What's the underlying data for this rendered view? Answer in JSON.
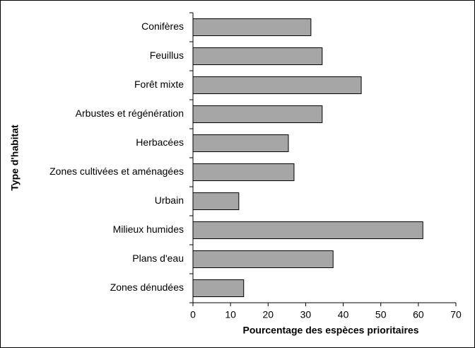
{
  "chart_data": {
    "type": "barh",
    "xlabel": "Pourcentage des espèces prioritaires",
    "ylabel": "Type d'habitat",
    "categories": [
      "Conifères",
      "Feuillus",
      "Forêt mixte",
      "Arbustes et régénération",
      "Herbacées",
      "Zones cultivées et aménagées",
      "Urbain",
      "Milieux humides",
      "Plans d'eau",
      "Zones dénudées"
    ],
    "values": [
      31.4,
      34.4,
      44.8,
      34.4,
      25.4,
      26.9,
      12.2,
      61.2,
      37.3,
      13.5
    ],
    "color": "#a6a6a6",
    "xlim": [
      0,
      70
    ],
    "xticks": [
      0,
      10,
      20,
      30,
      40,
      50,
      60,
      70
    ],
    "grid": false
  }
}
